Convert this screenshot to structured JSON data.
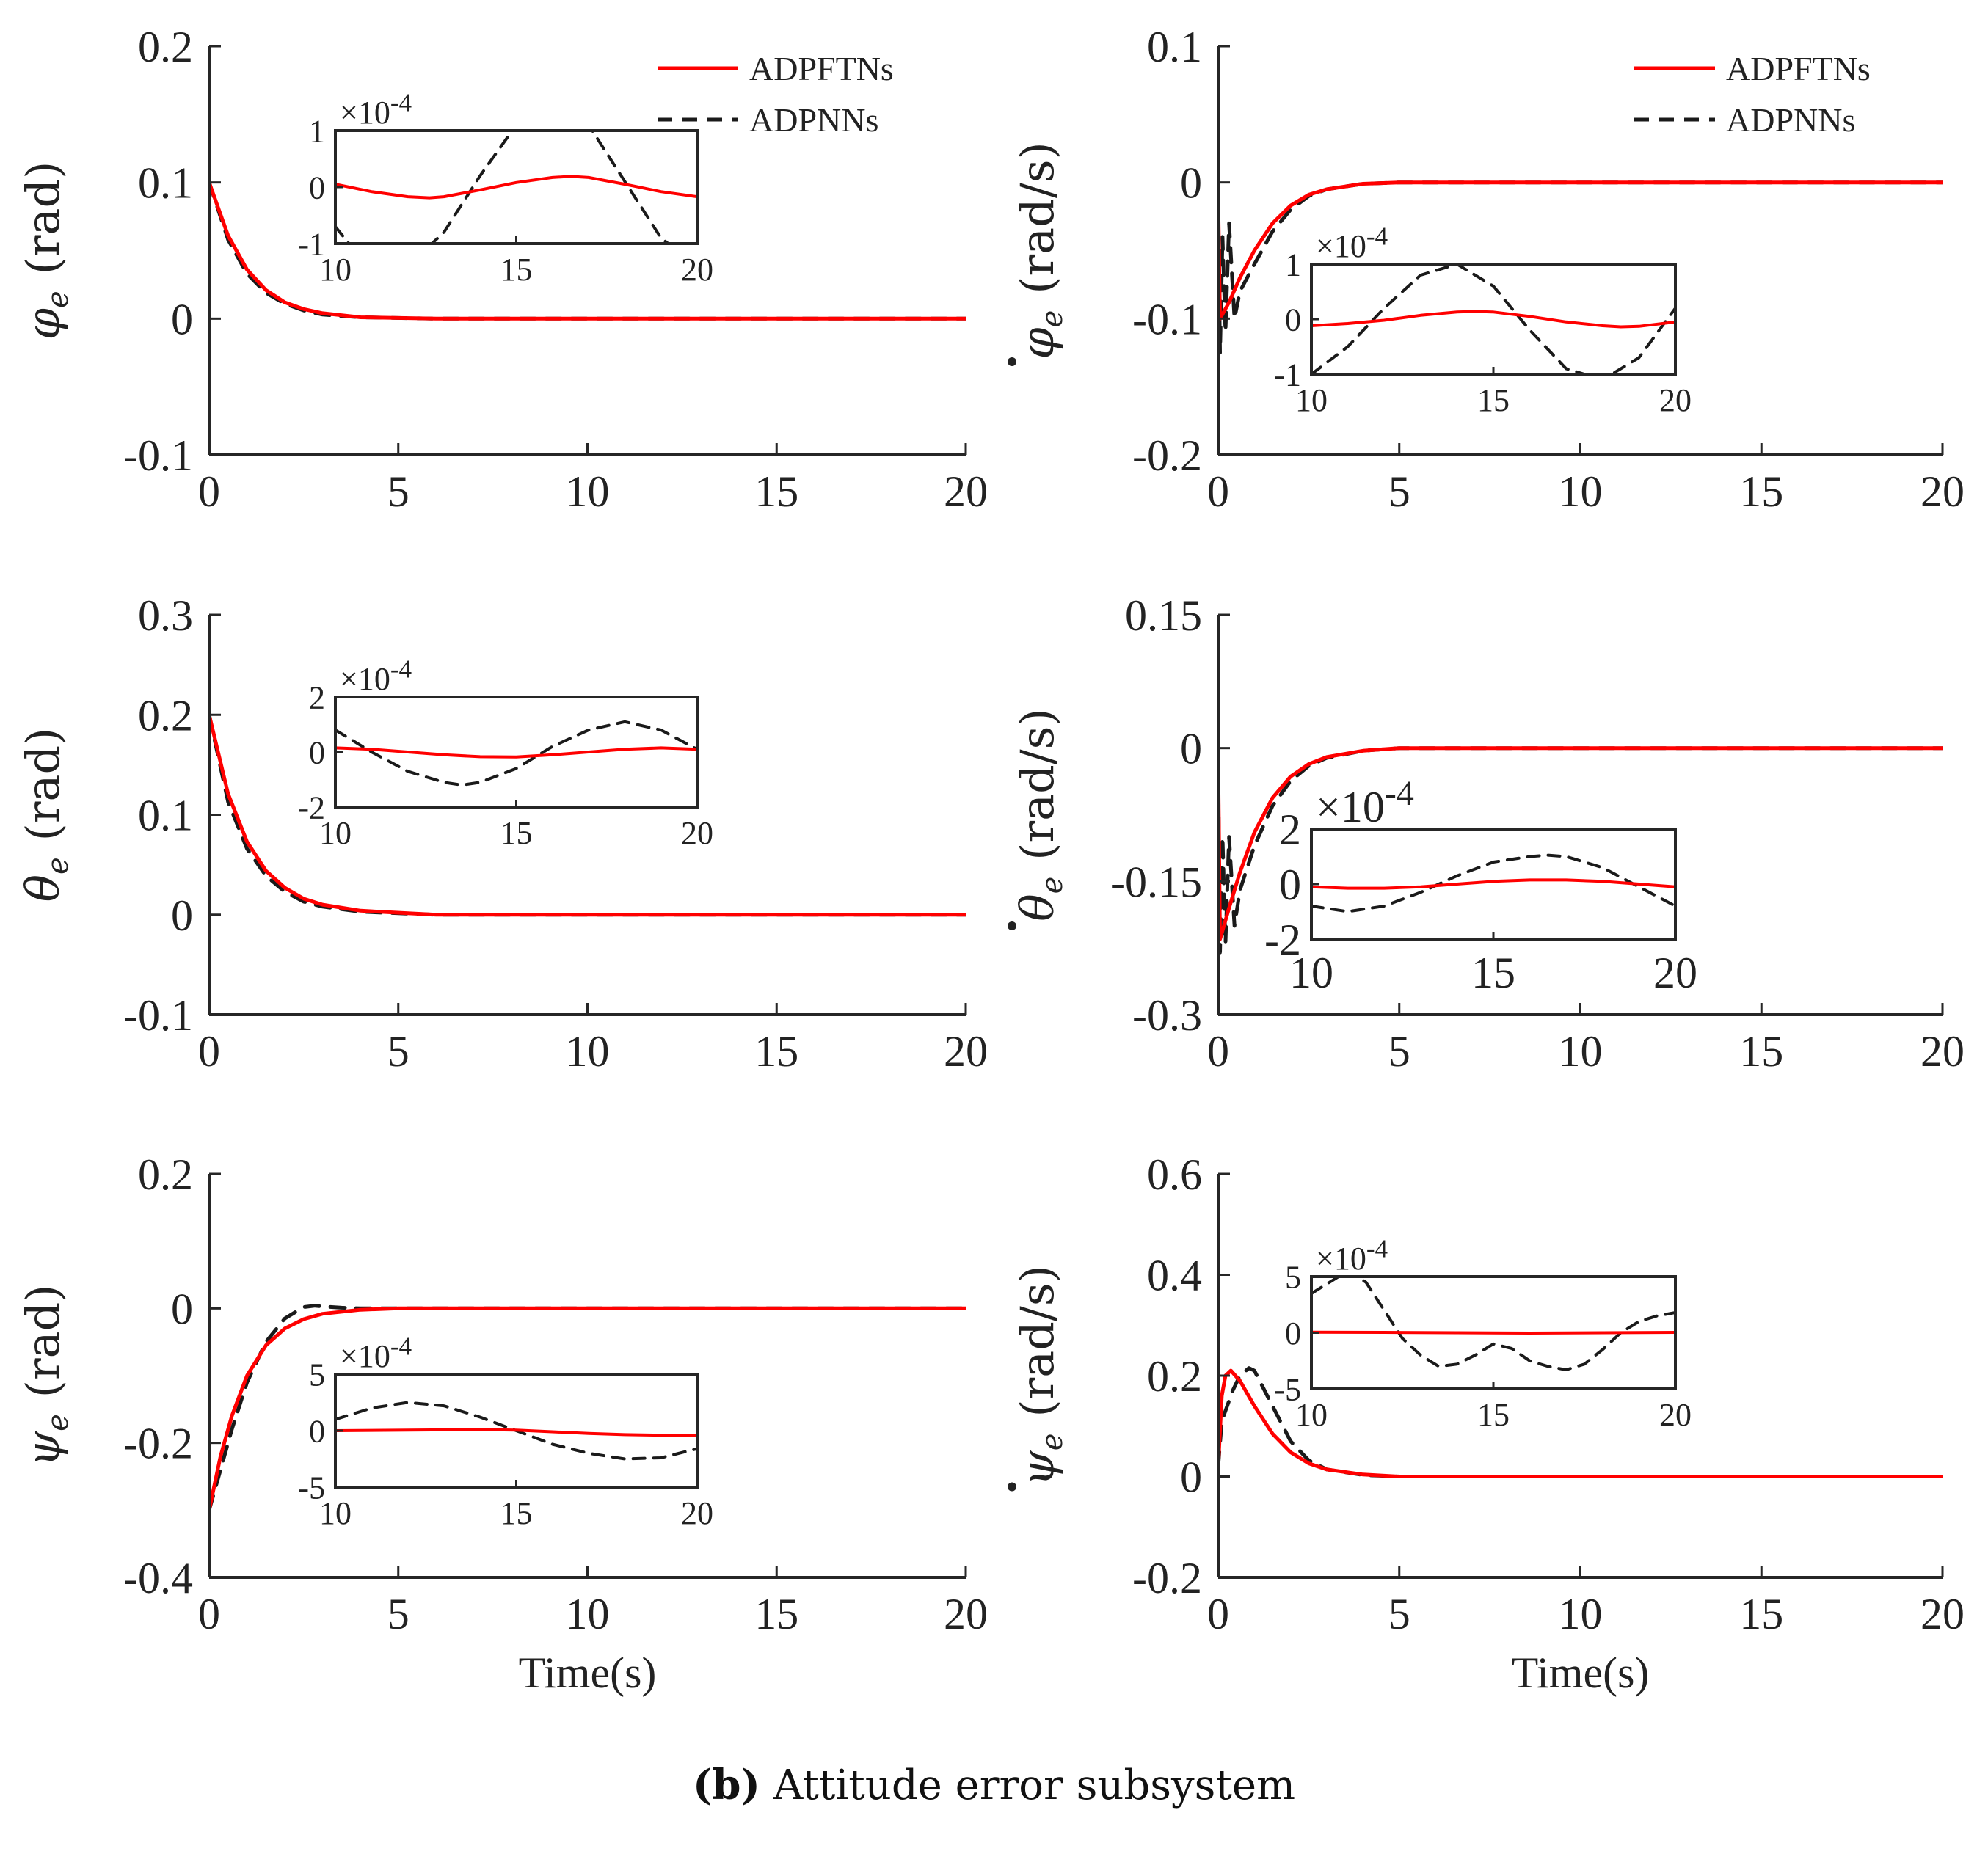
{
  "caption": {
    "label": "(b)",
    "text": "Attitude error subsystem"
  },
  "legend": [
    {
      "name": "ADPFTNs",
      "color": "#ff0000",
      "dash": "solid"
    },
    {
      "name": "ADPNNs",
      "color": "#1a1a1a",
      "dash": "dashed"
    }
  ],
  "xlabel": "Time(s)",
  "chart_data": [
    {
      "type": "line",
      "ylabel_sym": "φ",
      "ylabel_sub": "e",
      "ylabel_dot": false,
      "ylabel_unit": "(rad)",
      "xlim": [
        0,
        20
      ],
      "ylim": [
        -0.1,
        0.2
      ],
      "xticks": [
        "0",
        "5",
        "10",
        "15",
        "20"
      ],
      "yticks": [
        "-0.1",
        "0",
        "0.1",
        "0.2"
      ],
      "xlabel": "",
      "legend": true,
      "series": [
        {
          "name": "ADPFTNs",
          "x": [
            0,
            0.5,
            1,
            1.5,
            2,
            2.5,
            3,
            4,
            6,
            10,
            15,
            20
          ],
          "y": [
            0.1,
            0.061,
            0.036,
            0.021,
            0.012,
            0.007,
            0.004,
            0.001,
            0,
            0,
            0,
            0
          ]
        },
        {
          "name": "ADPNNs",
          "x": [
            0,
            0.5,
            1,
            1.5,
            2,
            2.5,
            3,
            4,
            6,
            10,
            15,
            20
          ],
          "y": [
            0.1,
            0.058,
            0.033,
            0.019,
            0.011,
            0.006,
            0.003,
            0.001,
            0,
            0,
            0,
            0
          ]
        }
      ],
      "inset": {
        "xlim": [
          10,
          20
        ],
        "ylim": [
          -1,
          1
        ],
        "xticks": [
          "10",
          "15",
          "20"
        ],
        "yticks": [
          "-1",
          "0",
          "1"
        ],
        "exponent": "-4",
        "large": false,
        "series": [
          {
            "name": "ADPFTNs",
            "x": [
              10,
              11,
              12,
              12.6,
              13,
              14,
              15,
              16,
              16.5,
              17,
              18,
              19,
              20
            ],
            "y": [
              0.05,
              -0.08,
              -0.17,
              -0.19,
              -0.17,
              -0.05,
              0.08,
              0.17,
              0.19,
              0.17,
              0.05,
              -0.08,
              -0.17
            ]
          },
          {
            "name": "ADPNNs",
            "x": [
              10,
              10.5,
              11,
              12,
              13,
              14,
              15,
              16,
              17,
              18,
              19,
              20
            ],
            "y": [
              -0.7,
              -1.1,
              -1.5,
              -1.4,
              -0.8,
              0.2,
              1.1,
              1.4,
              1.1,
              0.1,
              -0.9,
              -1.4
            ]
          }
        ]
      }
    },
    {
      "type": "line",
      "ylabel_sym": "φ",
      "ylabel_sub": "e",
      "ylabel_dot": true,
      "ylabel_unit": "(rad/s)",
      "xlim": [
        0,
        20
      ],
      "ylim": [
        -0.2,
        0.1
      ],
      "xticks": [
        "0",
        "5",
        "10",
        "15",
        "20"
      ],
      "yticks": [
        "-0.2",
        "-0.1",
        "0",
        "0.1"
      ],
      "xlabel": "",
      "legend": true,
      "series": [
        {
          "name": "ADPFTNs",
          "x": [
            0,
            0.05,
            0.3,
            0.6,
            1,
            1.5,
            2,
            2.5,
            3,
            4,
            5,
            10,
            15,
            20
          ],
          "y": [
            -0.01,
            -0.1,
            -0.088,
            -0.07,
            -0.05,
            -0.03,
            -0.017,
            -0.009,
            -0.005,
            -0.001,
            0,
            0,
            0,
            0
          ]
        },
        {
          "name": "ADPNNs",
          "x": [
            0,
            0.05,
            0.12,
            0.2,
            0.3,
            0.45,
            0.6,
            1,
            1.5,
            2,
            2.5,
            3,
            4,
            5,
            10,
            15,
            20
          ],
          "y": [
            -0.02,
            -0.125,
            -0.04,
            -0.11,
            -0.03,
            -0.1,
            -0.08,
            -0.06,
            -0.036,
            -0.02,
            -0.01,
            -0.005,
            -0.001,
            0,
            0,
            0,
            0
          ]
        }
      ],
      "inset": {
        "xlim": [
          10,
          20
        ],
        "ylim": [
          -1,
          1
        ],
        "xticks": [
          "10",
          "15",
          "20"
        ],
        "yticks": [
          "-1",
          "0",
          "1"
        ],
        "exponent": "-4",
        "large": false,
        "series": [
          {
            "name": "ADPFTNs",
            "x": [
              10,
              11,
              12,
              13,
              14,
              14.5,
              15,
              16,
              17,
              18,
              18.5,
              19,
              20
            ],
            "y": [
              -0.12,
              -0.08,
              -0.02,
              0.07,
              0.13,
              0.14,
              0.13,
              0.05,
              -0.05,
              -0.12,
              -0.14,
              -0.13,
              -0.05
            ]
          },
          {
            "name": "ADPNNs",
            "x": [
              10,
              11,
              12,
              13,
              14,
              15,
              16,
              17,
              18,
              19,
              20
            ],
            "y": [
              -1.0,
              -0.5,
              0.2,
              0.8,
              1.0,
              0.6,
              -0.2,
              -0.9,
              -1.1,
              -0.7,
              0.2
            ]
          }
        ]
      }
    },
    {
      "type": "line",
      "ylabel_sym": "θ",
      "ylabel_sub": "e",
      "ylabel_dot": false,
      "ylabel_unit": "(rad)",
      "xlim": [
        0,
        20
      ],
      "ylim": [
        -0.1,
        0.3
      ],
      "xticks": [
        "0",
        "5",
        "10",
        "15",
        "20"
      ],
      "yticks": [
        "-0.1",
        "0",
        "0.1",
        "0.2",
        "0.3"
      ],
      "xlabel": "",
      "legend": false,
      "series": [
        {
          "name": "ADPFTNs",
          "x": [
            0,
            0.5,
            1,
            1.5,
            2,
            2.5,
            3,
            4,
            6,
            10,
            15,
            20
          ],
          "y": [
            0.2,
            0.121,
            0.073,
            0.044,
            0.027,
            0.016,
            0.01,
            0.004,
            0,
            0,
            0,
            0
          ]
        },
        {
          "name": "ADPNNs",
          "x": [
            0,
            0.5,
            1,
            1.5,
            2,
            2.5,
            3,
            4,
            6,
            10,
            15,
            20
          ],
          "y": [
            0.2,
            0.113,
            0.066,
            0.039,
            0.023,
            0.013,
            0.008,
            0.003,
            0,
            0,
            0,
            0
          ]
        }
      ],
      "inset": {
        "xlim": [
          10,
          20
        ],
        "ylim": [
          -2,
          2
        ],
        "xticks": [
          "10",
          "15",
          "20"
        ],
        "yticks": [
          "-2",
          "0",
          "2"
        ],
        "exponent": "-4",
        "large": false,
        "series": [
          {
            "name": "ADPFTNs",
            "x": [
              10,
              11,
              12,
              13,
              14,
              15,
              16,
              17,
              18,
              19,
              20
            ],
            "y": [
              0.15,
              0.1,
              0.0,
              -0.1,
              -0.17,
              -0.18,
              -0.1,
              0.0,
              0.1,
              0.15,
              0.1
            ]
          },
          {
            "name": "ADPNNs",
            "x": [
              10,
              11,
              12,
              13,
              13.5,
              14,
              15,
              16,
              17,
              18,
              19,
              20
            ],
            "y": [
              0.8,
              0.0,
              -0.7,
              -1.1,
              -1.2,
              -1.1,
              -0.6,
              0.2,
              0.8,
              1.1,
              0.8,
              0.1
            ]
          }
        ]
      }
    },
    {
      "type": "line",
      "ylabel_sym": "θ",
      "ylabel_sub": "e",
      "ylabel_dot": true,
      "ylabel_unit": "(rad/s)",
      "xlim": [
        0,
        20
      ],
      "ylim": [
        -0.3,
        0.15
      ],
      "xticks": [
        "0",
        "5",
        "10",
        "15",
        "20"
      ],
      "yticks": [
        "-0.3",
        "-0.15",
        "0",
        "0.15"
      ],
      "xlabel": "",
      "legend": false,
      "series": [
        {
          "name": "ADPFTNs",
          "x": [
            0,
            0.05,
            0.3,
            0.6,
            1,
            1.5,
            2,
            2.5,
            3,
            4,
            5,
            10,
            15,
            20
          ],
          "y": [
            -0.01,
            -0.215,
            -0.18,
            -0.14,
            -0.095,
            -0.056,
            -0.032,
            -0.018,
            -0.01,
            -0.003,
            0,
            0,
            0,
            0
          ]
        },
        {
          "name": "ADPNNs",
          "x": [
            0,
            0.05,
            0.12,
            0.2,
            0.3,
            0.45,
            0.6,
            1,
            1.5,
            2,
            2.5,
            3,
            4,
            5,
            10,
            15,
            20
          ],
          "y": [
            -0.02,
            -0.23,
            -0.1,
            -0.22,
            -0.1,
            -0.2,
            -0.16,
            -0.11,
            -0.065,
            -0.037,
            -0.02,
            -0.011,
            -0.003,
            0,
            0,
            0,
            0
          ]
        }
      ],
      "inset": {
        "xlim": [
          10,
          20
        ],
        "ylim": [
          -2,
          2
        ],
        "xticks": [
          "10",
          "15",
          "20"
        ],
        "yticks": [
          "-2",
          "0",
          "2"
        ],
        "exponent": "-4",
        "large": true,
        "series": [
          {
            "name": "ADPFTNs",
            "x": [
              10,
              11,
              12,
              13,
              14,
              15,
              16,
              17,
              18,
              19,
              20
            ],
            "y": [
              -0.1,
              -0.15,
              -0.15,
              -0.1,
              0.0,
              0.1,
              0.15,
              0.15,
              0.1,
              0.0,
              -0.1
            ]
          },
          {
            "name": "ADPNNs",
            "x": [
              10,
              11,
              12,
              13,
              14,
              15,
              16,
              16.5,
              17,
              18,
              19,
              20
            ],
            "y": [
              -0.8,
              -1.0,
              -0.8,
              -0.3,
              0.3,
              0.8,
              1.0,
              1.05,
              1.0,
              0.6,
              -0.1,
              -0.8
            ]
          }
        ]
      }
    },
    {
      "type": "line",
      "ylabel_sym": "ψ",
      "ylabel_sub": "e",
      "ylabel_dot": false,
      "ylabel_unit": "(rad)",
      "xlim": [
        0,
        20
      ],
      "ylim": [
        -0.4,
        0.2
      ],
      "xticks": [
        "0",
        "5",
        "10",
        "15",
        "20"
      ],
      "yticks": [
        "-0.4",
        "-0.2",
        "0",
        "0.2"
      ],
      "xlabel": "Time(s)",
      "legend": false,
      "series": [
        {
          "name": "ADPFTNs",
          "x": [
            0,
            0.3,
            0.6,
            1,
            1.5,
            2,
            2.5,
            3,
            4,
            5,
            10,
            15,
            20
          ],
          "y": [
            -0.3,
            -0.22,
            -0.16,
            -0.1,
            -0.055,
            -0.03,
            -0.016,
            -0.008,
            -0.002,
            0,
            0,
            0,
            0
          ]
        },
        {
          "name": "ADPNNs",
          "x": [
            0,
            0.3,
            0.6,
            1,
            1.5,
            2,
            2.5,
            2.8,
            3,
            3.5,
            4,
            5,
            10,
            15,
            20
          ],
          "y": [
            -0.3,
            -0.24,
            -0.18,
            -0.11,
            -0.05,
            -0.015,
            0.002,
            0.004,
            0.003,
            0.001,
            0,
            0,
            0,
            0,
            0
          ]
        }
      ],
      "inset": {
        "xlim": [
          10,
          20
        ],
        "ylim": [
          -5,
          5
        ],
        "xticks": [
          "10",
          "15",
          "20"
        ],
        "yticks": [
          "-5",
          "0",
          "5"
        ],
        "exponent": "-4",
        "large": false,
        "series": [
          {
            "name": "ADPFTNs",
            "x": [
              10,
              12,
              14,
              15,
              16,
              17,
              18,
              19,
              20
            ],
            "y": [
              0.0,
              0.05,
              0.1,
              0.05,
              -0.1,
              -0.25,
              -0.35,
              -0.4,
              -0.45
            ]
          },
          {
            "name": "ADPNNs",
            "x": [
              10,
              11,
              12,
              13,
              14,
              15,
              16,
              17,
              18,
              19,
              20
            ],
            "y": [
              1.0,
              2.0,
              2.5,
              2.2,
              1.2,
              0.0,
              -1.2,
              -2.0,
              -2.5,
              -2.4,
              -1.6
            ]
          }
        ]
      }
    },
    {
      "type": "line",
      "ylabel_sym": "ψ",
      "ylabel_sub": "e",
      "ylabel_dot": true,
      "ylabel_unit": "(rad/s)",
      "xlim": [
        0,
        20
      ],
      "ylim": [
        -0.2,
        0.6
      ],
      "xticks": [
        "0",
        "5",
        "10",
        "15",
        "20"
      ],
      "yticks": [
        "-0.2",
        "0",
        "0.2",
        "0.4",
        "0.6"
      ],
      "xlabel": "Time(s)",
      "legend": false,
      "series": [
        {
          "name": "ADPFTNs",
          "x": [
            0,
            0.1,
            0.2,
            0.35,
            0.6,
            1,
            1.5,
            2,
            2.5,
            3,
            4,
            5,
            10,
            15,
            20
          ],
          "y": [
            0.02,
            0.16,
            0.2,
            0.21,
            0.19,
            0.14,
            0.085,
            0.048,
            0.026,
            0.014,
            0.004,
            0,
            0,
            0,
            0
          ]
        },
        {
          "name": "ADPNNs",
          "x": [
            0,
            0.1,
            0.25,
            0.4,
            0.6,
            0.85,
            1,
            1.5,
            2,
            2.5,
            3,
            4,
            5,
            10,
            15,
            20
          ],
          "y": [
            0.02,
            0.11,
            0.14,
            0.17,
            0.2,
            0.215,
            0.21,
            0.14,
            0.07,
            0.032,
            0.014,
            0.003,
            0,
            0,
            0,
            0
          ]
        }
      ],
      "inset": {
        "xlim": [
          10,
          20
        ],
        "ylim": [
          -5,
          5
        ],
        "xticks": [
          "10",
          "15",
          "20"
        ],
        "yticks": [
          "-5",
          "0",
          "5"
        ],
        "exponent": "-4",
        "large": false,
        "series": [
          {
            "name": "ADPFTNs",
            "x": [
              10,
              12,
              14,
              16,
              18,
              20
            ],
            "y": [
              0.05,
              0.03,
              0.0,
              -0.03,
              0.0,
              0.03
            ]
          },
          {
            "name": "ADPNNs",
            "x": [
              10,
              10.5,
              11,
              11.5,
              12,
              12.5,
              13,
              13.5,
              14,
              14.5,
              15,
              15.5,
              16,
              16.5,
              17,
              17.5,
              18,
              18.5,
              19,
              19.5,
              20
            ],
            "y": [
              3.5,
              4.5,
              5.5,
              4.5,
              2.0,
              -0.5,
              -2.0,
              -3.0,
              -2.8,
              -2.0,
              -1.0,
              -1.4,
              -2.5,
              -3.0,
              -3.3,
              -2.8,
              -1.5,
              0.0,
              1.0,
              1.5,
              1.8
            ]
          }
        ]
      }
    }
  ]
}
